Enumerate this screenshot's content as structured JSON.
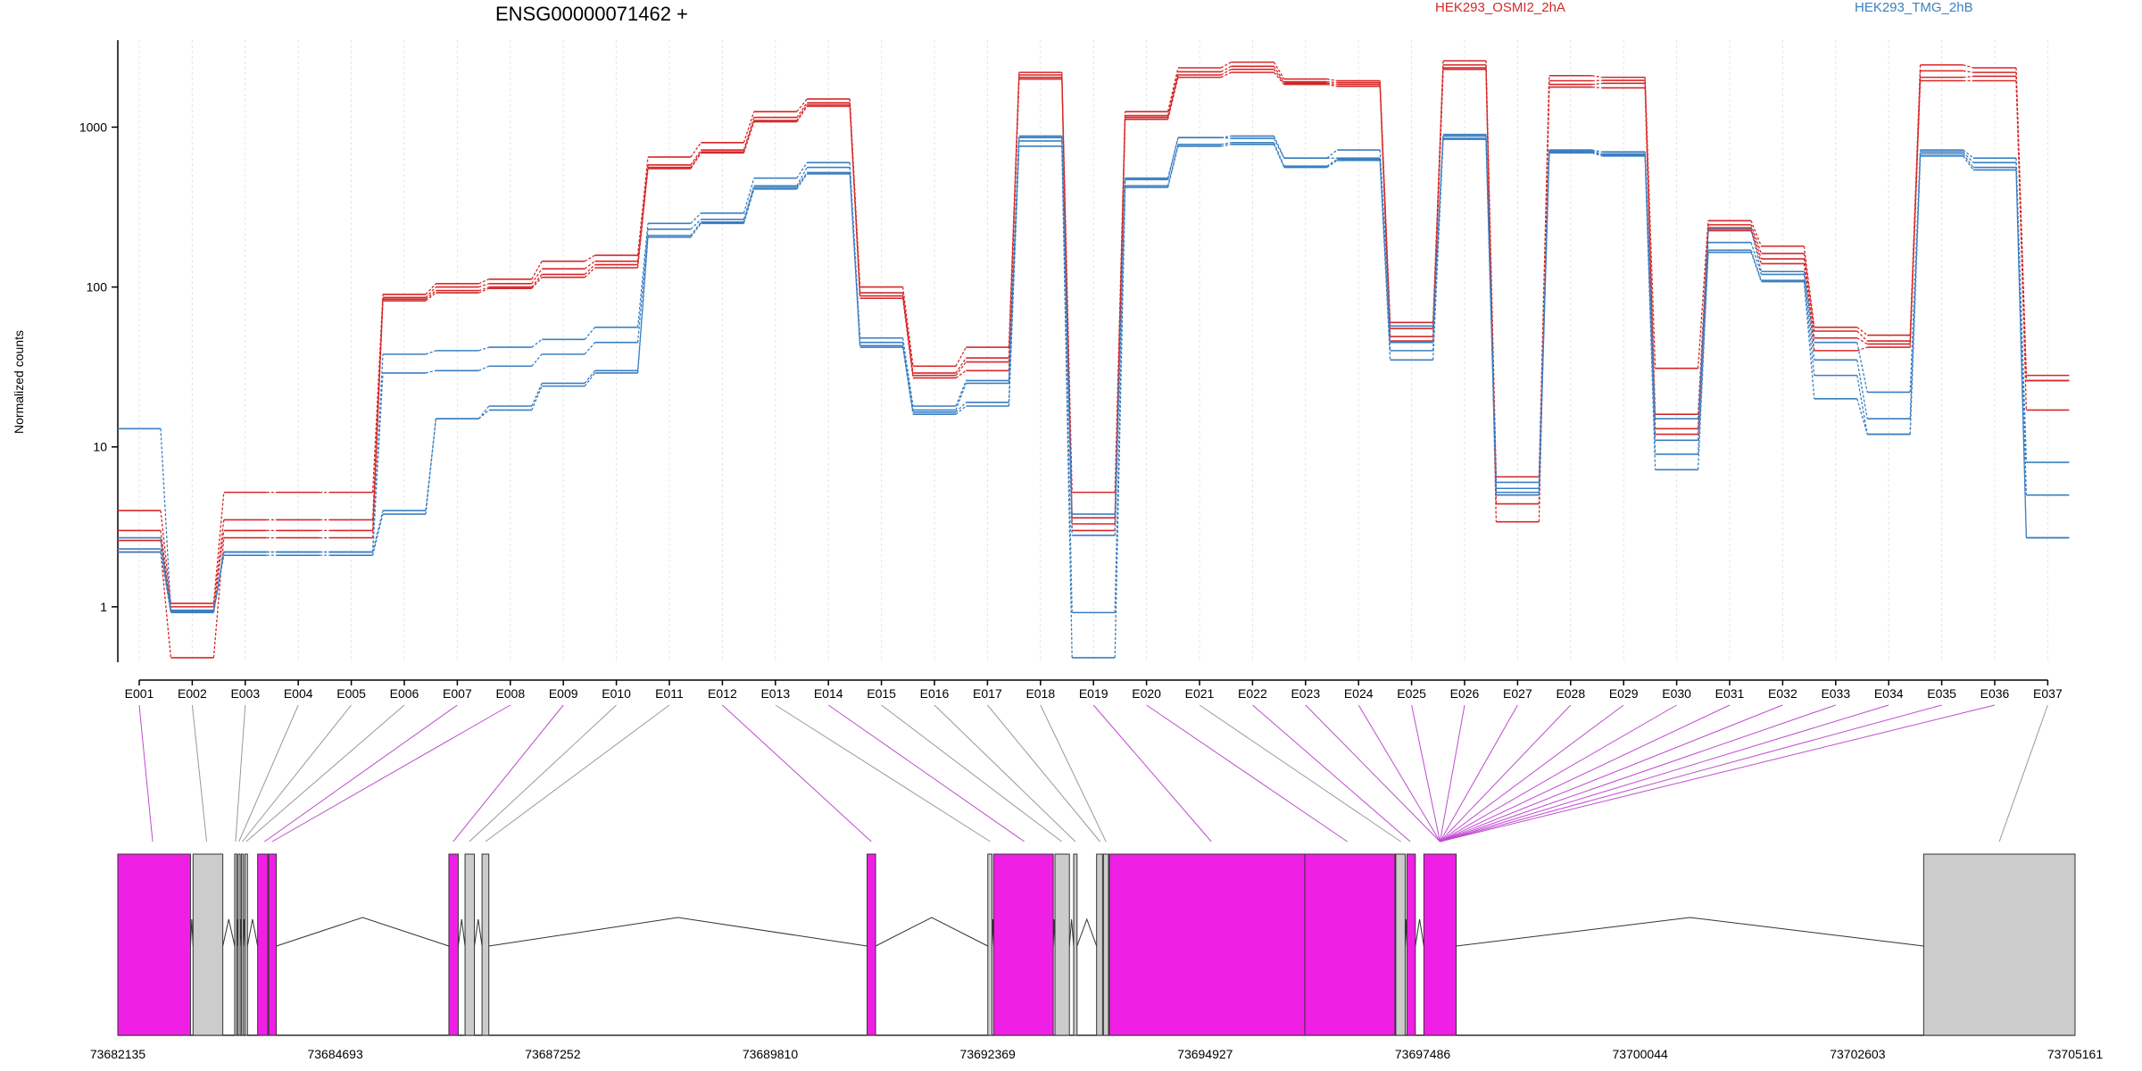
{
  "chart_data": {
    "type": "line",
    "title": "ENSG00000071462 +",
    "ylabel": "Normalized counts",
    "xlabel": "",
    "y_scale": "log",
    "y_ticks": [
      1,
      10,
      100,
      1000
    ],
    "ylim": [
      0.45,
      3500
    ],
    "grid": "vertical dotted lines at each exon",
    "legend": [
      "HEK293_OSMI2_2hA",
      "HEK293_TMG_2hB"
    ],
    "legend_colors": [
      "#d62728",
      "#3a7fc1"
    ],
    "categories": [
      "E001",
      "E002",
      "E003",
      "E004",
      "E005",
      "E006",
      "E007",
      "E008",
      "E009",
      "E010",
      "E011",
      "E012",
      "E013",
      "E014",
      "E015",
      "E016",
      "E017",
      "E018",
      "E019",
      "E020",
      "E021",
      "E022",
      "E023",
      "E024",
      "E025",
      "E026",
      "E027",
      "E028",
      "E029",
      "E030",
      "E031",
      "E032",
      "E033",
      "E034",
      "E035",
      "E036",
      "E037"
    ],
    "series": [
      {
        "group": "HEK293_OSMI2_2hA",
        "color": "#d62728",
        "values": [
          4.0,
          1.05,
          5.2,
          5.2,
          5.2,
          90,
          105,
          112,
          145,
          158,
          650,
          800,
          1250,
          1500,
          100,
          32,
          42,
          2200,
          5.2,
          1250,
          2350,
          2550,
          2000,
          1950,
          60,
          2600,
          6.5,
          2100,
          2050,
          31,
          260,
          180,
          56,
          50,
          2450,
          2350,
          28
        ]
      },
      {
        "group": "HEK293_OSMI2_2hA",
        "color": "#d62728",
        "values": [
          3.0,
          1.0,
          3.5,
          3.5,
          3.5,
          86,
          100,
          105,
          130,
          145,
          580,
          720,
          1150,
          1420,
          92,
          29,
          36,
          2120,
          3.6,
          1180,
          2220,
          2400,
          1920,
          1900,
          55,
          2450,
          5.0,
          1950,
          1960,
          16,
          245,
          162,
          53,
          46,
          2250,
          2200,
          26
        ]
      },
      {
        "group": "HEK293_OSMI2_2hA",
        "color": "#d62728",
        "values": [
          2.6,
          0.95,
          3.0,
          3.0,
          3.0,
          84,
          95,
          100,
          120,
          138,
          560,
          700,
          1100,
          1380,
          88,
          28,
          34,
          2050,
          3.3,
          1150,
          2120,
          2300,
          1880,
          1850,
          49,
          2350,
          4.4,
          1850,
          1880,
          13,
          235,
          150,
          48,
          44,
          2050,
          2080,
          17
        ]
      },
      {
        "group": "HEK293_OSMI2_2hA",
        "color": "#d62728",
        "values": [
          2.2,
          0.48,
          2.7,
          2.7,
          2.7,
          82,
          92,
          98,
          115,
          132,
          550,
          690,
          1080,
          1350,
          85,
          27,
          30,
          2000,
          3.0,
          1120,
          2050,
          2200,
          1850,
          1800,
          46,
          2300,
          3.4,
          1780,
          1760,
          12,
          225,
          140,
          40,
          42,
          1950,
          1950,
          26
        ]
      },
      {
        "group": "HEK293_TMG_2hB",
        "color": "#3a7fc1",
        "values": [
          13,
          0.95,
          2.2,
          2.2,
          2.2,
          38,
          40,
          42,
          47,
          56,
          250,
          290,
          480,
          600,
          48,
          18,
          26,
          880,
          3.8,
          480,
          860,
          880,
          640,
          720,
          57,
          900,
          6.0,
          720,
          700,
          15,
          230,
          125,
          45,
          22,
          720,
          640,
          8
        ]
      },
      {
        "group": "HEK293_TMG_2hB",
        "color": "#3a7fc1",
        "values": [
          2.7,
          0.93,
          2.2,
          2.2,
          2.2,
          29,
          30,
          32,
          38,
          45,
          230,
          265,
          430,
          560,
          45,
          17,
          25,
          860,
          2.8,
          470,
          860,
          850,
          640,
          640,
          45,
          880,
          5.5,
          710,
          680,
          11,
          190,
          120,
          35,
          15,
          700,
          600,
          5.0
        ]
      },
      {
        "group": "HEK293_TMG_2hB",
        "color": "#3a7fc1",
        "values": [
          2.3,
          0.94,
          2.2,
          2.2,
          2.2,
          4.0,
          15,
          18,
          25,
          30,
          210,
          255,
          420,
          520,
          43,
          16.5,
          19,
          820,
          0.92,
          430,
          780,
          800,
          570,
          630,
          40,
          850,
          5.2,
          700,
          670,
          9,
          170,
          110,
          28,
          12,
          680,
          560,
          2.7
        ]
      },
      {
        "group": "HEK293_TMG_2hB",
        "color": "#3a7fc1",
        "values": [
          2.2,
          0.92,
          2.1,
          2.1,
          2.1,
          3.8,
          15,
          17,
          24,
          29,
          205,
          250,
          410,
          510,
          42,
          16,
          18,
          760,
          0.48,
          420,
          760,
          780,
          560,
          620,
          35,
          840,
          5.0,
          690,
          660,
          7.2,
          165,
          108,
          20,
          12,
          660,
          540,
          2.7
        ]
      }
    ],
    "gene_model": {
      "coordinates": [
        "73682135",
        "73684693",
        "73687252",
        "73689810",
        "73692369",
        "73694927",
        "73697486",
        "73700044",
        "73702603",
        "73705161"
      ],
      "range": [
        73682135,
        73705161
      ],
      "exon_blocks": [
        {
          "start": 73682135,
          "end": 73682990,
          "type": "tested"
        },
        {
          "start": 73683020,
          "end": 73683370,
          "type": "untested"
        },
        {
          "start": 73683510,
          "end": 73683535,
          "type": "untested"
        },
        {
          "start": 73683550,
          "end": 73683575,
          "type": "untested"
        },
        {
          "start": 73683590,
          "end": 73683612,
          "type": "untested"
        },
        {
          "start": 73683630,
          "end": 73683660,
          "type": "untested"
        },
        {
          "start": 73683780,
          "end": 73683900,
          "type": "tested"
        },
        {
          "start": 73683910,
          "end": 73684000,
          "type": "tested"
        },
        {
          "start": 73686030,
          "end": 73686140,
          "type": "tested"
        },
        {
          "start": 73686220,
          "end": 73686330,
          "type": "untested"
        },
        {
          "start": 73686420,
          "end": 73686500,
          "type": "untested"
        },
        {
          "start": 73690950,
          "end": 73691050,
          "type": "tested"
        },
        {
          "start": 73692370,
          "end": 73692420,
          "type": "untested"
        },
        {
          "start": 73692440,
          "end": 73693140,
          "type": "tested"
        },
        {
          "start": 73693160,
          "end": 73693330,
          "type": "untested"
        },
        {
          "start": 73693380,
          "end": 73693420,
          "type": "untested"
        },
        {
          "start": 73693650,
          "end": 73693720,
          "type": "untested"
        },
        {
          "start": 73693730,
          "end": 73693790,
          "type": "untested"
        },
        {
          "start": 73693800,
          "end": 73696100,
          "type": "tested"
        },
        {
          "start": 73696100,
          "end": 73697160,
          "type": "tested"
        },
        {
          "start": 73697170,
          "end": 73697280,
          "type": "untested"
        },
        {
          "start": 73697300,
          "end": 73697400,
          "type": "tested"
        },
        {
          "start": 73697500,
          "end": 73697880,
          "type": "tested"
        },
        {
          "start": 73703380,
          "end": 73705161,
          "type": "untested"
        }
      ],
      "exon_anchors": [
        73682545,
        73683180,
        73683520,
        73683560,
        73683600,
        73683645,
        73683860,
        73683950,
        73686080,
        73686270,
        73686460,
        73691000,
        73692400,
        73692800,
        73693240,
        73693400,
        73693690,
        73693760,
        73695000,
        73696600,
        73697230,
        73697340,
        73697690,
        73697690,
        73697690,
        73697690,
        73697690,
        73697690,
        73697690,
        73697690,
        73697690,
        73697690,
        73697690,
        73697690,
        73697690,
        73697690,
        73704270
      ],
      "colors": {
        "tested": "#f01fe6",
        "untested": "#cccccc"
      }
    }
  }
}
